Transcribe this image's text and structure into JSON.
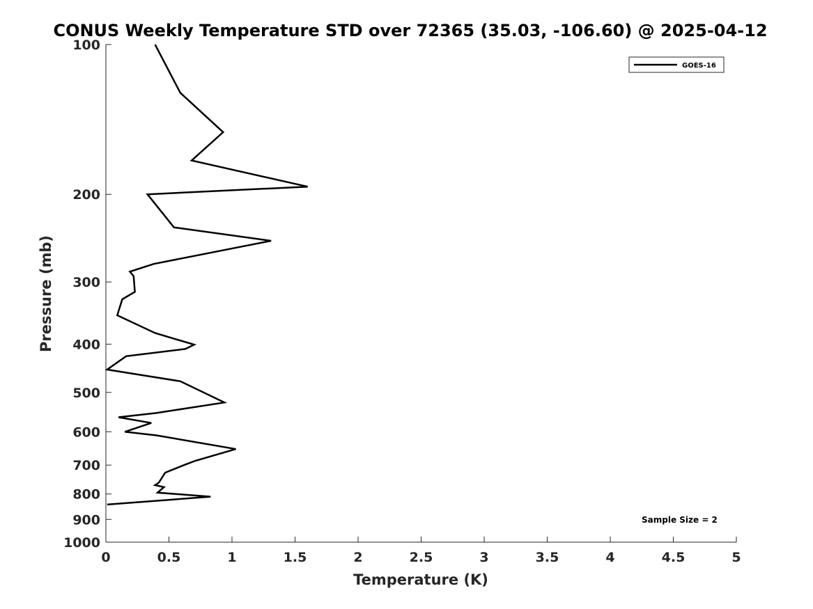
{
  "chart_data": {
    "type": "line",
    "title": "CONUS Weekly Temperature STD over 72365 (35.03, -106.60) @ 2025-04-12",
    "xlabel": "Temperature (K)",
    "ylabel": "Pressure (mb)",
    "xlim": [
      0,
      5
    ],
    "ylim": [
      100,
      1000
    ],
    "yscale": "log",
    "y_reversed": true,
    "grid": false,
    "legend_placement": "top-right",
    "x_ticks": [
      "0",
      "0.5",
      "1",
      "1.5",
      "2",
      "2.5",
      "3",
      "3.5",
      "4",
      "4.5",
      "5"
    ],
    "y_ticks": [
      "100",
      "200",
      "300",
      "400",
      "500",
      "600",
      "700",
      "800",
      "900",
      "1000"
    ],
    "series": [
      {
        "name": "GOES-16",
        "color": "#000000",
        "x": [
          0.39,
          0.59,
          0.93,
          0.68,
          1.6,
          0.33,
          0.54,
          1.31,
          0.38,
          0.19,
          0.22,
          0.23,
          0.13,
          0.09,
          0.39,
          0.7,
          0.63,
          0.16,
          0.01,
          0.59,
          0.94,
          0.4,
          0.1,
          0.36,
          0.15,
          0.4,
          1.03,
          0.71,
          0.62,
          0.47,
          0.42,
          0.39,
          0.46,
          0.41,
          0.83,
          0.01
        ],
        "y": [
          100,
          125,
          150,
          171,
          193,
          200,
          233,
          248,
          276,
          286,
          292,
          314,
          325,
          350,
          380,
          401,
          409,
          423,
          450,
          475,
          524,
          550,
          561,
          576,
          600,
          610,
          650,
          686,
          700,
          725,
          759,
          768,
          775,
          795,
          810,
          840
        ]
      }
    ],
    "annotations": [
      {
        "text": "Sample Size = 2"
      }
    ]
  }
}
